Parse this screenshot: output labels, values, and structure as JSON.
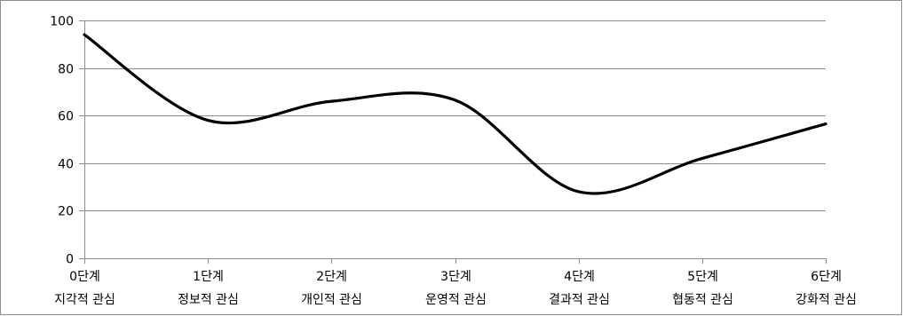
{
  "chart_data": {
    "type": "line",
    "categories": [
      [
        "0단계",
        "지각적 관심"
      ],
      [
        "1단계",
        "정보적 관심"
      ],
      [
        "2단계",
        "개인적 관심"
      ],
      [
        "3단계",
        "운영적 관심"
      ],
      [
        "4단계",
        "결과적 관심"
      ],
      [
        "5단계",
        "협동적 관심"
      ],
      [
        "6단계",
        "강화적 관심"
      ]
    ],
    "series": [
      {
        "values": [
          94,
          58,
          66,
          66.5,
          28,
          42,
          56.5
        ],
        "color": "#000000"
      }
    ],
    "ylim": [
      0,
      100
    ],
    "yticks": [
      0,
      20,
      40,
      60,
      80,
      100
    ],
    "grid": true,
    "legend": "none",
    "smooth": true
  }
}
